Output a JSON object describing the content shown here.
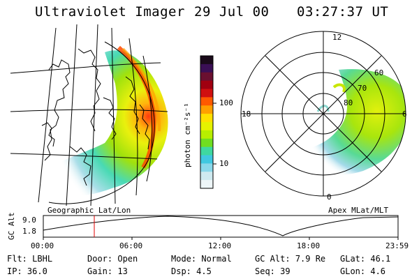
{
  "header": {
    "instrument": "Ultraviolet Imager",
    "date": "29 Jul 00",
    "time": "03:27:37 UT"
  },
  "colorbar": {
    "unit_label": "photon cm⁻²s⁻¹",
    "ticks": [
      "100",
      "10"
    ],
    "colors": [
      "#1a0a1a",
      "#3a0f55",
      "#6a1030",
      "#a00010",
      "#d01010",
      "#ff5a00",
      "#ffa000",
      "#ffe000",
      "#e6f200",
      "#b8ee00",
      "#70de20",
      "#3fd8a0",
      "#40c8e0",
      "#8ad8ea",
      "#cfeaf0",
      "#eef6f8"
    ]
  },
  "left_map": {
    "caption": "Geographic Lat/Lon"
  },
  "right_polar": {
    "caption": "Apex MLat/MLT",
    "mlt_labels": [
      "12",
      "18",
      "6",
      "0"
    ],
    "lat_labels": [
      "60",
      "70",
      "80"
    ]
  },
  "alt_plot": {
    "ylabel": "GC Alt",
    "yticks": [
      "9.0",
      "1.8"
    ],
    "xticks": [
      "00:00",
      "06:00",
      "12:00",
      "18:00",
      "23:59"
    ],
    "cursor_color": "#e00000"
  },
  "footer": {
    "row1": [
      {
        "label": "Flt:",
        "value": "LBHL"
      },
      {
        "label": "Door:",
        "value": "Open"
      },
      {
        "label": "Mode:",
        "value": "Normal"
      },
      {
        "label": "GC Alt:",
        "value": "7.9 Re"
      },
      {
        "label": "GLat:",
        "value": "46.1"
      }
    ],
    "row2": [
      {
        "label": "IP:",
        "value": "36.0"
      },
      {
        "label": "Gain:",
        "value": "13"
      },
      {
        "label": "Dsp:",
        "value": "4.5"
      },
      {
        "label": "Seq:",
        "value": "39"
      },
      {
        "label": "GLon:",
        "value": "4.6"
      }
    ]
  }
}
